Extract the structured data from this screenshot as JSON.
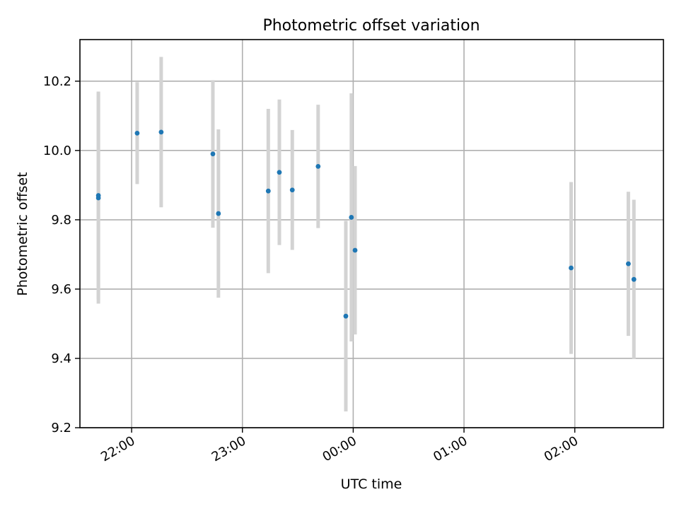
{
  "chart_data": {
    "type": "scatter",
    "title": "Photometric offset variation",
    "xlabel": "UTC time",
    "ylabel": "Photometric offset",
    "x_axis_kind": "time",
    "xlim": [
      "21:32",
      "02:48"
    ],
    "ylim": [
      9.2,
      10.32
    ],
    "xticks": [
      "22:00",
      "23:00",
      "00:00",
      "01:00",
      "02:00"
    ],
    "xticks_minutes": [
      1320,
      1380,
      1440,
      1500,
      1560
    ],
    "yticks": [
      9.2,
      9.4,
      9.6,
      9.8,
      10.0,
      10.2
    ],
    "ytick_labels": [
      "9.2",
      "9.4",
      "9.6",
      "9.8",
      "10.0",
      "10.2"
    ],
    "grid": true,
    "marker_color": "#1f77b4",
    "errorbar_color": "#d3d3d3",
    "points": [
      {
        "x": "21:42",
        "y": 9.863,
        "err": 0.305
      },
      {
        "x": "21:42",
        "y": 9.87,
        "err": 0.3
      },
      {
        "x": "22:03",
        "y": 10.05,
        "err": 0.147
      },
      {
        "x": "22:16",
        "y": 10.053,
        "err": 0.217
      },
      {
        "x": "22:44",
        "y": 9.99,
        "err": 0.213
      },
      {
        "x": "22:47",
        "y": 9.818,
        "err": 0.243
      },
      {
        "x": "23:14",
        "y": 9.883,
        "err": 0.237
      },
      {
        "x": "23:20",
        "y": 9.937,
        "err": 0.21
      },
      {
        "x": "23:27",
        "y": 9.886,
        "err": 0.173
      },
      {
        "x": "23:41",
        "y": 9.954,
        "err": 0.178
      },
      {
        "x": "23:56",
        "y": 9.522,
        "err": 0.275
      },
      {
        "x": "23:59",
        "y": 9.807,
        "err": 0.358
      },
      {
        "x": "00:01",
        "y": 9.712,
        "err": 0.243
      },
      {
        "x": "01:58",
        "y": 9.661,
        "err": 0.248
      },
      {
        "x": "02:29",
        "y": 9.673,
        "err": 0.208
      },
      {
        "x": "02:32",
        "y": 9.628,
        "err": 0.23
      }
    ]
  }
}
